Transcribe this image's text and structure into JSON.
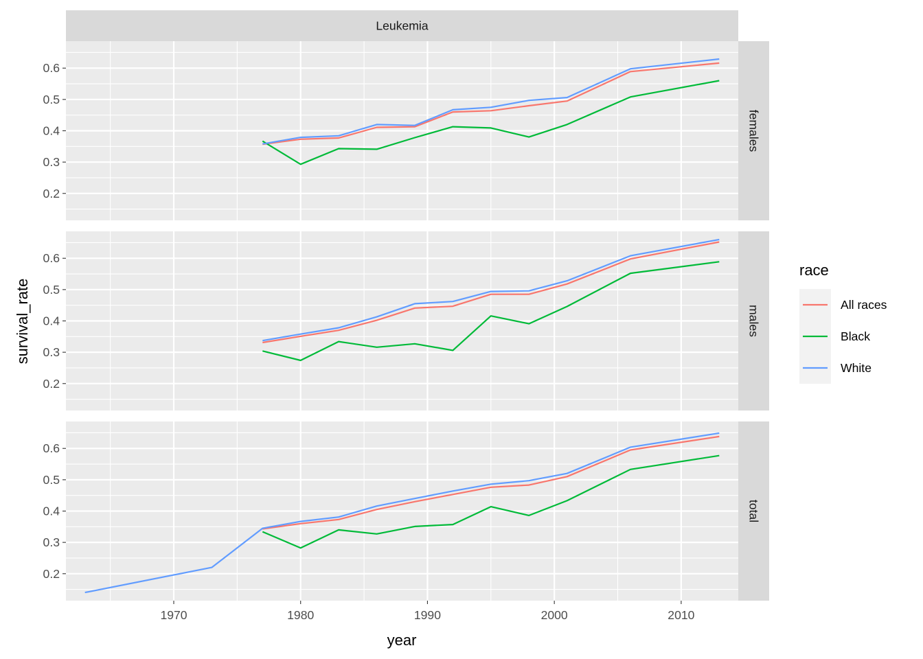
{
  "chart_data": {
    "type": "line",
    "facet_column": "Leukemia",
    "xlabel": "year",
    "ylabel": "survival_rate",
    "xlim": [
      1963,
      2013
    ],
    "x_ticks": [
      1970,
      1980,
      1990,
      2000,
      2010
    ],
    "ylim": [
      0.14,
      0.66
    ],
    "y_ticks": [
      0.2,
      0.3,
      0.4,
      0.5,
      0.6
    ],
    "grid": true,
    "legend": {
      "title": "race",
      "placement": "right",
      "entries": [
        {
          "name": "All races",
          "color": "#F8766D"
        },
        {
          "name": "Black",
          "color": "#00BA38"
        },
        {
          "name": "White",
          "color": "#619CFF"
        }
      ]
    },
    "panels": [
      {
        "label": "females",
        "series": [
          {
            "name": "All races",
            "x": [
              1977,
              1980,
              1983,
              1986,
              1989,
              1992,
              1995,
              1998,
              2001,
              2006,
              2013
            ],
            "y": [
              0.357,
              0.373,
              0.377,
              0.411,
              0.413,
              0.46,
              0.464,
              0.48,
              0.495,
              0.589,
              0.616
            ]
          },
          {
            "name": "Black",
            "x": [
              1977,
              1980,
              1983,
              1986,
              1989,
              1992,
              1995,
              1998,
              2001,
              2006,
              2013
            ],
            "y": [
              0.367,
              0.293,
              0.343,
              0.341,
              0.378,
              0.413,
              0.409,
              0.38,
              0.42,
              0.508,
              0.56
            ]
          },
          {
            "name": "White",
            "x": [
              1977,
              1980,
              1983,
              1986,
              1989,
              1992,
              1995,
              1998,
              2001,
              2006,
              2013
            ],
            "y": [
              0.358,
              0.379,
              0.384,
              0.42,
              0.417,
              0.467,
              0.475,
              0.497,
              0.506,
              0.598,
              0.629
            ]
          }
        ]
      },
      {
        "label": "males",
        "series": [
          {
            "name": "All races",
            "x": [
              1977,
              1980,
              1983,
              1986,
              1989,
              1992,
              1995,
              1998,
              2001,
              2006,
              2013
            ],
            "y": [
              0.331,
              0.351,
              0.37,
              0.402,
              0.441,
              0.447,
              0.485,
              0.485,
              0.518,
              0.598,
              0.652
            ]
          },
          {
            "name": "Black",
            "x": [
              1977,
              1980,
              1983,
              1986,
              1989,
              1992,
              1995,
              1998,
              2001,
              2006,
              2013
            ],
            "y": [
              0.304,
              0.274,
              0.334,
              0.316,
              0.327,
              0.306,
              0.416,
              0.391,
              0.446,
              0.552,
              0.589
            ]
          },
          {
            "name": "White",
            "x": [
              1977,
              1980,
              1983,
              1986,
              1989,
              1992,
              1995,
              1998,
              2001,
              2006,
              2013
            ],
            "y": [
              0.337,
              0.358,
              0.378,
              0.413,
              0.455,
              0.462,
              0.494,
              0.496,
              0.528,
              0.608,
              0.66
            ]
          }
        ]
      },
      {
        "label": "total",
        "series": [
          {
            "name": "All races",
            "x": [
              1977,
              1980,
              1983,
              1986,
              1989,
              1992,
              1995,
              1998,
              2001,
              2006,
              2013
            ],
            "y": [
              0.343,
              0.36,
              0.373,
              0.405,
              0.43,
              0.453,
              0.476,
              0.483,
              0.51,
              0.595,
              0.638
            ]
          },
          {
            "name": "Black",
            "x": [
              1977,
              1980,
              1983,
              1986,
              1989,
              1992,
              1995,
              1998,
              2001,
              2006,
              2013
            ],
            "y": [
              0.334,
              0.282,
              0.34,
              0.327,
              0.351,
              0.357,
              0.414,
              0.386,
              0.433,
              0.533,
              0.577
            ]
          },
          {
            "name": "White",
            "x": [
              1963,
              1973,
              1977,
              1980,
              1983,
              1986,
              1989,
              1992,
              1995,
              1998,
              2001,
              2006,
              2013
            ],
            "y": [
              0.14,
              0.22,
              0.345,
              0.367,
              0.381,
              0.416,
              0.44,
              0.464,
              0.486,
              0.497,
              0.52,
              0.604,
              0.649
            ]
          }
        ]
      }
    ]
  }
}
